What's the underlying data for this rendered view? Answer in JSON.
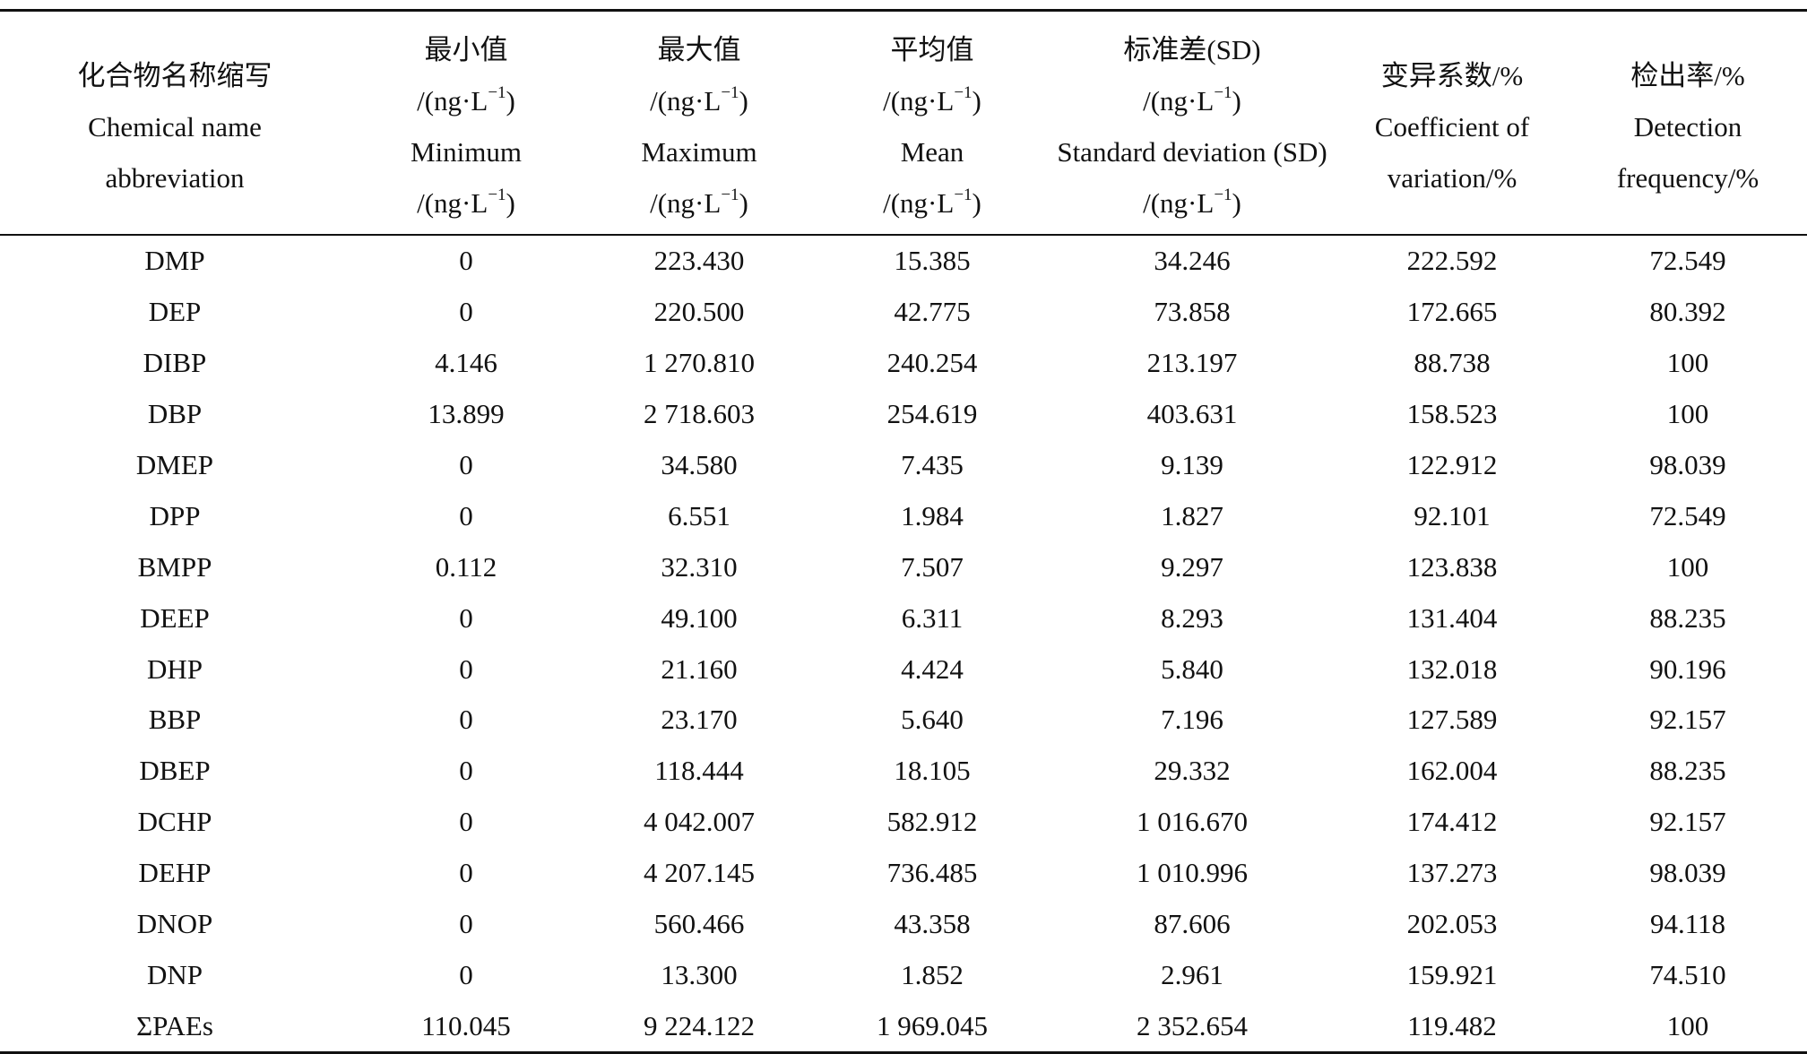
{
  "headers": [
    {
      "lines": [
        "化合物名称缩写",
        "Chemical name",
        "abbreviation"
      ],
      "unit_lines": []
    },
    {
      "lines": [
        "最小值"
      ],
      "unit_lines": [
        "/(ng·L",
        "Minimum"
      ],
      "unit_tail": [
        "/(ng·L"
      ]
    },
    {
      "lines": [
        "最大值"
      ],
      "unit_lines": [
        "Maximum"
      ]
    },
    {
      "lines": [
        "平均值"
      ],
      "unit_lines": [
        "Mean"
      ]
    },
    {
      "lines": [
        "标准差(SD)"
      ],
      "unit_lines": [
        "Standard deviation (SD)"
      ]
    },
    {
      "lines": [
        "变异系数/%",
        "Coefficient of",
        "variation/%"
      ],
      "unit_lines": []
    },
    {
      "lines": [
        "检出率/%",
        "Detection",
        "frequency/%"
      ],
      "unit_lines": []
    }
  ],
  "unit": {
    "prefix": "/(ng·L",
    "exp": "−1",
    "suffix": ")"
  },
  "columns": [
    "化合物名称缩写 Chemical name abbreviation",
    "最小值 Minimum",
    "最大值 Maximum",
    "平均值 Mean",
    "标准差(SD) Standard deviation (SD)",
    "变异系数/% Coefficient of variation/%",
    "检出率/% Detection frequency/%"
  ],
  "rows": [
    [
      "DMP",
      "0",
      "223.430",
      "15.385",
      "34.246",
      "222.592",
      "72.549"
    ],
    [
      "DEP",
      "0",
      "220.500",
      "42.775",
      "73.858",
      "172.665",
      "80.392"
    ],
    [
      "DIBP",
      "4.146",
      "1 270.810",
      "240.254",
      "213.197",
      "88.738",
      "100"
    ],
    [
      "DBP",
      "13.899",
      "2 718.603",
      "254.619",
      "403.631",
      "158.523",
      "100"
    ],
    [
      "DMEP",
      "0",
      "34.580",
      "7.435",
      "9.139",
      "122.912",
      "98.039"
    ],
    [
      "DPP",
      "0",
      "6.551",
      "1.984",
      "1.827",
      "92.101",
      "72.549"
    ],
    [
      "BMPP",
      "0.112",
      "32.310",
      "7.507",
      "9.297",
      "123.838",
      "100"
    ],
    [
      "DEEP",
      "0",
      "49.100",
      "6.311",
      "8.293",
      "131.404",
      "88.235"
    ],
    [
      "DHP",
      "0",
      "21.160",
      "4.424",
      "5.840",
      "132.018",
      "90.196"
    ],
    [
      "BBP",
      "0",
      "23.170",
      "5.640",
      "7.196",
      "127.589",
      "92.157"
    ],
    [
      "DBEP",
      "0",
      "118.444",
      "18.105",
      "29.332",
      "162.004",
      "88.235"
    ],
    [
      "DCHP",
      "0",
      "4 042.007",
      "582.912",
      "1 016.670",
      "174.412",
      "92.157"
    ],
    [
      "DEHP",
      "0",
      "4 207.145",
      "736.485",
      "1 010.996",
      "137.273",
      "98.039"
    ],
    [
      "DNOP",
      "0",
      "560.466",
      "43.358",
      "87.606",
      "202.053",
      "94.118"
    ],
    [
      "DNP",
      "0",
      "13.300",
      "1.852",
      "2.961",
      "159.921",
      "74.510"
    ],
    [
      "ΣPAEs",
      "110.045",
      "9 224.122",
      "1 969.045",
      "2 352.654",
      "119.482",
      "100"
    ]
  ]
}
